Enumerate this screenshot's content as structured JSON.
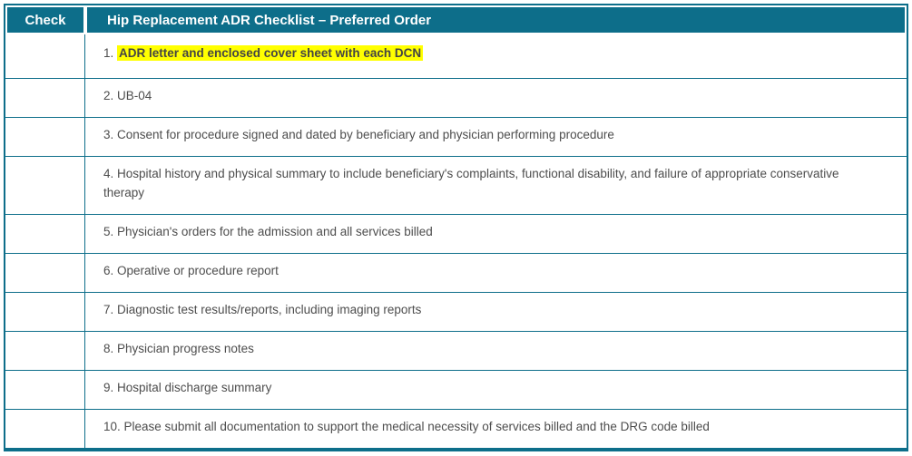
{
  "colors": {
    "teal": "#0d6e8a",
    "header_text": "#ffffff",
    "body_text": "#4d4d4d",
    "highlight_bg": "#ffff00",
    "highlight_text": "#444444"
  },
  "table": {
    "header": {
      "check_label": "Check",
      "title": "Hip Replacement ADR Checklist – Preferred Order"
    },
    "rows": [
      {
        "number": "1.",
        "text": "ADR letter and enclosed cover sheet with each DCN",
        "highlighted": true
      },
      {
        "number": "2.",
        "text": "UB-04",
        "highlighted": false
      },
      {
        "number": "3.",
        "text": "Consent for procedure signed and dated by beneficiary and physician performing procedure",
        "highlighted": false
      },
      {
        "number": "4.",
        "text": "Hospital history and physical summary to include beneficiary's complaints, functional disability, and failure of appropriate conservative therapy",
        "highlighted": false
      },
      {
        "number": "5.",
        "text": "Physician's orders for the admission and all services billed",
        "highlighted": false
      },
      {
        "number": "6.",
        "text": "Operative or procedure report",
        "highlighted": false
      },
      {
        "number": "7.",
        "text": "Diagnostic test results/reports, including imaging reports",
        "highlighted": false
      },
      {
        "number": "8.",
        "text": "Physician progress notes",
        "highlighted": false
      },
      {
        "number": "9.",
        "text": "Hospital discharge summary",
        "highlighted": false
      },
      {
        "number": "10.",
        "text": "Please submit all documentation to support the medical necessity of services billed and the DRG code billed",
        "highlighted": false
      }
    ]
  }
}
